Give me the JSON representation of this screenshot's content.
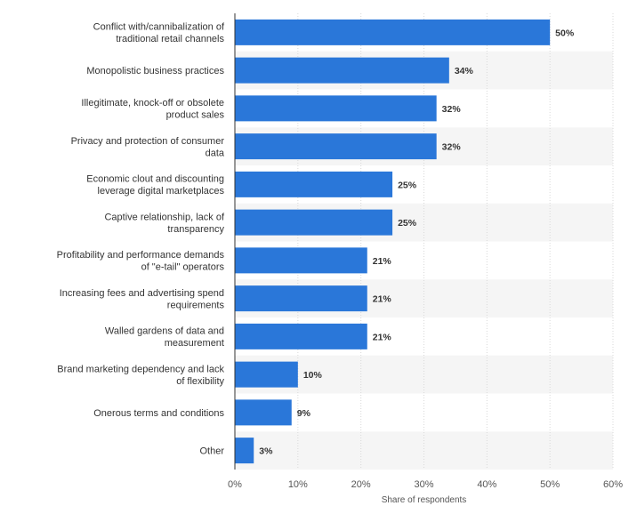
{
  "chart_data": {
    "type": "bar",
    "orientation": "horizontal",
    "categories": [
      [
        "Conflict with/cannibalization of",
        "traditional retail channels"
      ],
      [
        "Monopolistic business practices"
      ],
      [
        "Illegitimate, knock-off or obsolete",
        "product sales"
      ],
      [
        "Privacy and protection of consumer",
        "data"
      ],
      [
        "Economic clout and discounting",
        "leverage digital marketplaces"
      ],
      [
        "Captive relationship, lack of",
        "transparency"
      ],
      [
        "Profitability and performance demands",
        "of \"e-tail\" operators"
      ],
      [
        "Increasing fees and advertising spend",
        "requirements"
      ],
      [
        "Walled gardens of data and",
        "measurement"
      ],
      [
        "Brand marketing dependency and lack",
        "of flexibility"
      ],
      [
        "Onerous terms and conditions"
      ],
      [
        "Other"
      ]
    ],
    "values": [
      50,
      34,
      32,
      32,
      25,
      25,
      21,
      21,
      21,
      10,
      9,
      3
    ],
    "value_labels": [
      "50%",
      "34%",
      "32%",
      "32%",
      "25%",
      "25%",
      "21%",
      "21%",
      "21%",
      "10%",
      "9%",
      "3%"
    ],
    "xlim": [
      0,
      60
    ],
    "xticks": [
      0,
      10,
      20,
      30,
      40,
      50,
      60
    ],
    "xtick_labels": [
      "0%",
      "10%",
      "20%",
      "30%",
      "40%",
      "50%",
      "60%"
    ],
    "xlabel": "Share of respondents",
    "ylabel": "",
    "title": "",
    "grid": true,
    "alternating_row_bands": true,
    "colors": {
      "bar": "#2a77d9",
      "band": "#f5f5f5",
      "grid": "#d9d9d9",
      "axis": "#333333"
    }
  }
}
